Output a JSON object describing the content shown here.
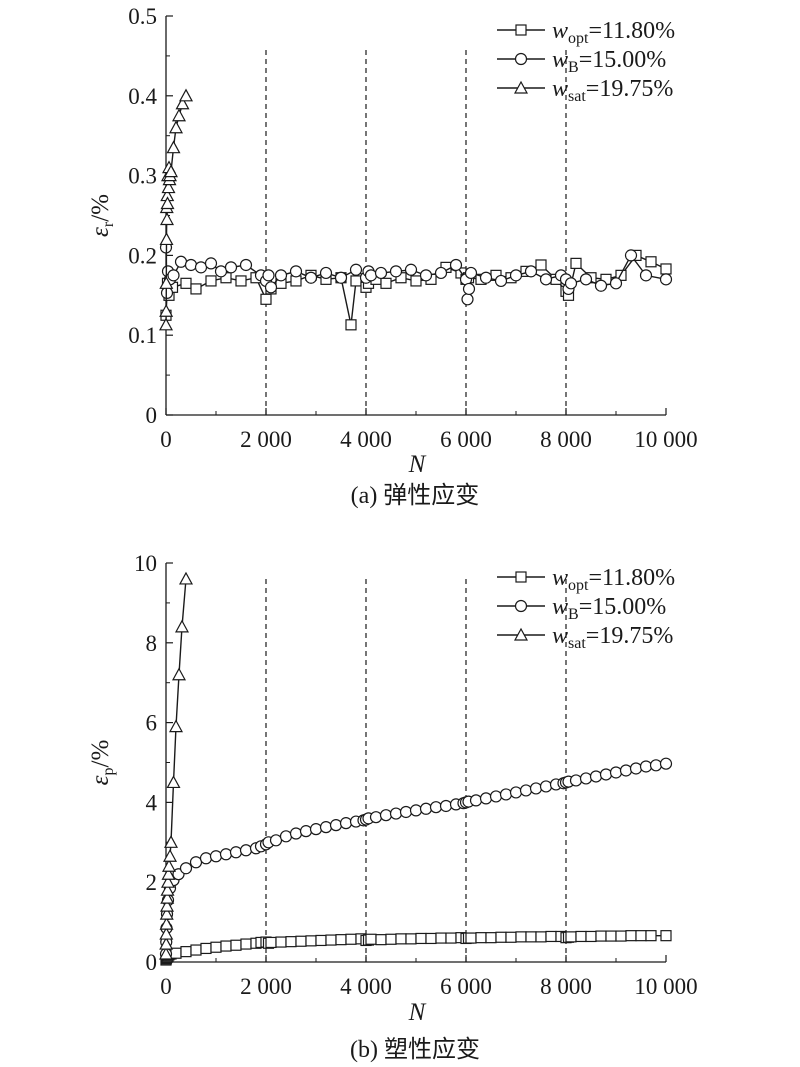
{
  "figure": {
    "charts_order": [
      "a",
      "b"
    ]
  },
  "chart_data": [
    {
      "id": "a",
      "type": "line",
      "caption": "(a) 弹性应变",
      "xlabel": "N",
      "ylabel": {
        "symbol": "ε",
        "subscript": "r",
        "unit": "/%"
      },
      "xlim": [
        0,
        10000
      ],
      "ylim": [
        0,
        0.5
      ],
      "xticks": [
        0,
        2000,
        4000,
        6000,
        8000,
        10000
      ],
      "xtick_labels": [
        "0",
        "2 000",
        "4 000",
        "6 000",
        "8 000",
        "10 000"
      ],
      "yticks": [
        0,
        0.1,
        0.2,
        0.3,
        0.4,
        0.5
      ],
      "ytick_labels": [
        "0",
        "0.1",
        "0.2",
        "0.3",
        "0.4",
        "0.5"
      ],
      "vlines": [
        2000,
        4000,
        6000,
        8000
      ],
      "vline_top": 0.46,
      "legend_position": "top-right",
      "series": [
        {
          "name": "w_opt=11.80%",
          "legend": {
            "w": "w",
            "sub": "opt",
            "rest": "=11.80%"
          },
          "marker": "square",
          "x": [
            0,
            30,
            60,
            130,
            400,
            600,
            900,
            1200,
            1500,
            1800,
            2000,
            2100,
            2300,
            2600,
            2900,
            3200,
            3500,
            3700,
            3800,
            4000,
            4050,
            4200,
            4400,
            4700,
            5000,
            5300,
            5600,
            5900,
            6000,
            6050,
            6300,
            6600,
            6900,
            7200,
            7500,
            7800,
            8000,
            8050,
            8200,
            8500,
            8800,
            9100,
            9400,
            9700,
            10000
          ],
          "y": [
            0.125,
            0.165,
            0.15,
            0.16,
            0.165,
            0.158,
            0.168,
            0.172,
            0.168,
            0.172,
            0.145,
            0.158,
            0.165,
            0.168,
            0.175,
            0.17,
            0.172,
            0.113,
            0.168,
            0.16,
            0.165,
            0.17,
            0.165,
            0.172,
            0.168,
            0.17,
            0.185,
            0.178,
            0.17,
            0.172,
            0.17,
            0.175,
            0.172,
            0.18,
            0.188,
            0.17,
            0.155,
            0.15,
            0.19,
            0.172,
            0.17,
            0.175,
            0.2,
            0.192,
            0.183
          ]
        },
        {
          "name": "w_B=15.00%",
          "legend": {
            "w": "w",
            "sub": "B",
            "rest": "=15.00%"
          },
          "marker": "circle",
          "x": [
            0,
            20,
            40,
            80,
            150,
            300,
            500,
            700,
            900,
            1100,
            1300,
            1600,
            1900,
            2000,
            2050,
            2100,
            2300,
            2600,
            2900,
            3200,
            3500,
            3800,
            4000,
            4050,
            4100,
            4300,
            4600,
            4900,
            5200,
            5500,
            5800,
            6000,
            6030,
            6060,
            6100,
            6400,
            6700,
            7000,
            7300,
            7600,
            7900,
            8000,
            8050,
            8100,
            8400,
            8700,
            9000,
            9300,
            9600,
            10000
          ],
          "y": [
            0.21,
            0.153,
            0.18,
            0.17,
            0.175,
            0.192,
            0.188,
            0.185,
            0.19,
            0.18,
            0.185,
            0.188,
            0.175,
            0.168,
            0.175,
            0.16,
            0.175,
            0.18,
            0.172,
            0.178,
            0.172,
            0.182,
            0.172,
            0.18,
            0.175,
            0.178,
            0.18,
            0.182,
            0.175,
            0.178,
            0.188,
            0.17,
            0.145,
            0.158,
            0.178,
            0.172,
            0.168,
            0.175,
            0.18,
            0.17,
            0.175,
            0.17,
            0.158,
            0.165,
            0.17,
            0.162,
            0.165,
            0.2,
            0.175,
            0.17
          ]
        },
        {
          "name": "w_sat=19.75%",
          "legend": {
            "w": "w",
            "sub": "sat",
            "rest": "=19.75%"
          },
          "marker": "triangle",
          "x": [
            0,
            3,
            6,
            10,
            15,
            20,
            25,
            30,
            40,
            50,
            60,
            70,
            80,
            100,
            150,
            200,
            260,
            330,
            400
          ],
          "y": [
            0.113,
            0.13,
            0.165,
            0.22,
            0.26,
            0.245,
            0.275,
            0.265,
            0.3,
            0.285,
            0.31,
            0.295,
            0.3,
            0.305,
            0.335,
            0.36,
            0.375,
            0.39,
            0.4
          ]
        }
      ]
    },
    {
      "id": "b",
      "type": "line",
      "caption": "(b) 塑性应变",
      "xlabel": "N",
      "ylabel": {
        "symbol": "ε",
        "subscript": "p",
        "unit": "/%"
      },
      "xlim": [
        0,
        10000
      ],
      "ylim": [
        0,
        10
      ],
      "xticks": [
        0,
        2000,
        4000,
        6000,
        8000,
        10000
      ],
      "xtick_labels": [
        "0",
        "2 000",
        "4 000",
        "6 000",
        "8 000",
        "10 000"
      ],
      "yticks": [
        0,
        2,
        4,
        6,
        8,
        10
      ],
      "ytick_labels": [
        "0",
        "2",
        "4",
        "6",
        "8",
        "10"
      ],
      "vlines": [
        2000,
        4000,
        6000,
        8000
      ],
      "vline_top": 9.6,
      "legend_position": "top-right",
      "series": [
        {
          "name": "w_opt=11.80%",
          "legend": {
            "w": "w",
            "sub": "opt",
            "rest": "=11.80%"
          },
          "marker": "square",
          "x": [
            0,
            5,
            10,
            20,
            40,
            60,
            100,
            200,
            400,
            600,
            800,
            1000,
            1200,
            1400,
            1600,
            1800,
            1900,
            2000,
            2050,
            2100,
            2300,
            2500,
            2700,
            2900,
            3100,
            3300,
            3500,
            3700,
            3900,
            4000,
            4050,
            4100,
            4300,
            4500,
            4700,
            4900,
            5100,
            5300,
            5500,
            5700,
            5900,
            6000,
            6050,
            6100,
            6300,
            6500,
            6700,
            6900,
            7100,
            7300,
            7500,
            7700,
            7900,
            8000,
            8050,
            8100,
            8300,
            8500,
            8700,
            8900,
            9100,
            9300,
            9500,
            9700,
            10000
          ],
          "y": [
            0.05,
            0.08,
            0.1,
            0.12,
            0.15,
            0.18,
            0.2,
            0.22,
            0.26,
            0.3,
            0.34,
            0.37,
            0.4,
            0.42,
            0.45,
            0.47,
            0.49,
            0.5,
            0.47,
            0.49,
            0.5,
            0.51,
            0.52,
            0.53,
            0.54,
            0.55,
            0.56,
            0.57,
            0.58,
            0.54,
            0.55,
            0.57,
            0.56,
            0.57,
            0.58,
            0.58,
            0.59,
            0.59,
            0.6,
            0.6,
            0.61,
            0.59,
            0.6,
            0.6,
            0.61,
            0.61,
            0.62,
            0.62,
            0.63,
            0.63,
            0.63,
            0.64,
            0.64,
            0.61,
            0.62,
            0.63,
            0.64,
            0.64,
            0.65,
            0.65,
            0.65,
            0.66,
            0.66,
            0.66,
            0.66
          ]
        },
        {
          "name": "w_B=15.00%",
          "legend": {
            "w": "w",
            "sub": "B",
            "rest": "=15.00%"
          },
          "marker": "circle",
          "x": [
            0,
            5,
            10,
            20,
            40,
            80,
            150,
            250,
            400,
            600,
            800,
            1000,
            1200,
            1400,
            1600,
            1800,
            1900,
            2000,
            2050,
            2200,
            2400,
            2600,
            2800,
            3000,
            3200,
            3400,
            3600,
            3800,
            3950,
            4000,
            4050,
            4200,
            4400,
            4600,
            4800,
            5000,
            5200,
            5400,
            5600,
            5800,
            5950,
            6000,
            6050,
            6200,
            6400,
            6600,
            6800,
            7000,
            7200,
            7400,
            7600,
            7800,
            7950,
            8000,
            8050,
            8200,
            8400,
            8600,
            8800,
            9000,
            9200,
            9400,
            9600,
            9800,
            10000
          ],
          "y": [
            0.2,
            0.5,
            0.85,
            1.2,
            1.55,
            1.85,
            2.05,
            2.2,
            2.35,
            2.5,
            2.6,
            2.65,
            2.7,
            2.75,
            2.8,
            2.85,
            2.9,
            2.95,
            3.0,
            3.05,
            3.15,
            3.22,
            3.28,
            3.33,
            3.38,
            3.43,
            3.48,
            3.52,
            3.55,
            3.57,
            3.6,
            3.63,
            3.68,
            3.72,
            3.76,
            3.8,
            3.84,
            3.88,
            3.91,
            3.95,
            3.98,
            4.0,
            4.02,
            4.05,
            4.1,
            4.15,
            4.2,
            4.25,
            4.3,
            4.35,
            4.4,
            4.45,
            4.48,
            4.5,
            4.52,
            4.55,
            4.6,
            4.65,
            4.7,
            4.75,
            4.8,
            4.85,
            4.9,
            4.93,
            4.97
          ]
        },
        {
          "name": "w_sat=19.75%",
          "legend": {
            "w": "w",
            "sub": "sat",
            "rest": "=19.75%"
          },
          "marker": "triangle",
          "x": [
            0,
            3,
            6,
            10,
            15,
            20,
            25,
            30,
            40,
            50,
            60,
            80,
            100,
            150,
            200,
            260,
            320,
            400
          ],
          "y": [
            0.2,
            0.45,
            0.7,
            0.95,
            1.2,
            1.4,
            1.6,
            1.8,
            2.0,
            2.2,
            2.4,
            2.65,
            3.0,
            4.5,
            5.9,
            7.2,
            8.4,
            9.6
          ]
        }
      ]
    }
  ]
}
